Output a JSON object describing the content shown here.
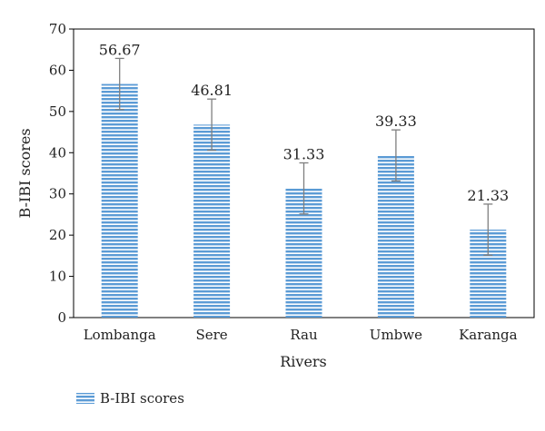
{
  "chart_data": {
    "type": "bar",
    "categories": [
      "Lombanga",
      "Sere",
      "Rau",
      "Umbwe",
      "Karanga"
    ],
    "series": [
      {
        "name": "B-IBI scores",
        "values": [
          56.67,
          46.81,
          31.33,
          39.33,
          21.33
        ],
        "error": [
          6.2,
          6.2,
          6.2,
          6.2,
          6.2
        ],
        "data_labels": [
          "56.67",
          "46.81",
          "31.33",
          "39.33",
          "21.33"
        ]
      }
    ],
    "xlabel": "Rivers",
    "ylabel": "B-IBI scores",
    "ylim": [
      0,
      70
    ],
    "yticks": [
      0,
      10,
      20,
      30,
      40,
      50,
      60,
      70
    ],
    "ytick_labels": [
      "0",
      "10",
      "20",
      "30",
      "40",
      "50",
      "60",
      "70"
    ],
    "grid": false,
    "legend": "bottom-left",
    "colors": {
      "bar": "#5b9bd5",
      "bar_stripe_gap": "#ffffff",
      "error_bar": "#7f7f7f",
      "axis": "#000000"
    }
  }
}
